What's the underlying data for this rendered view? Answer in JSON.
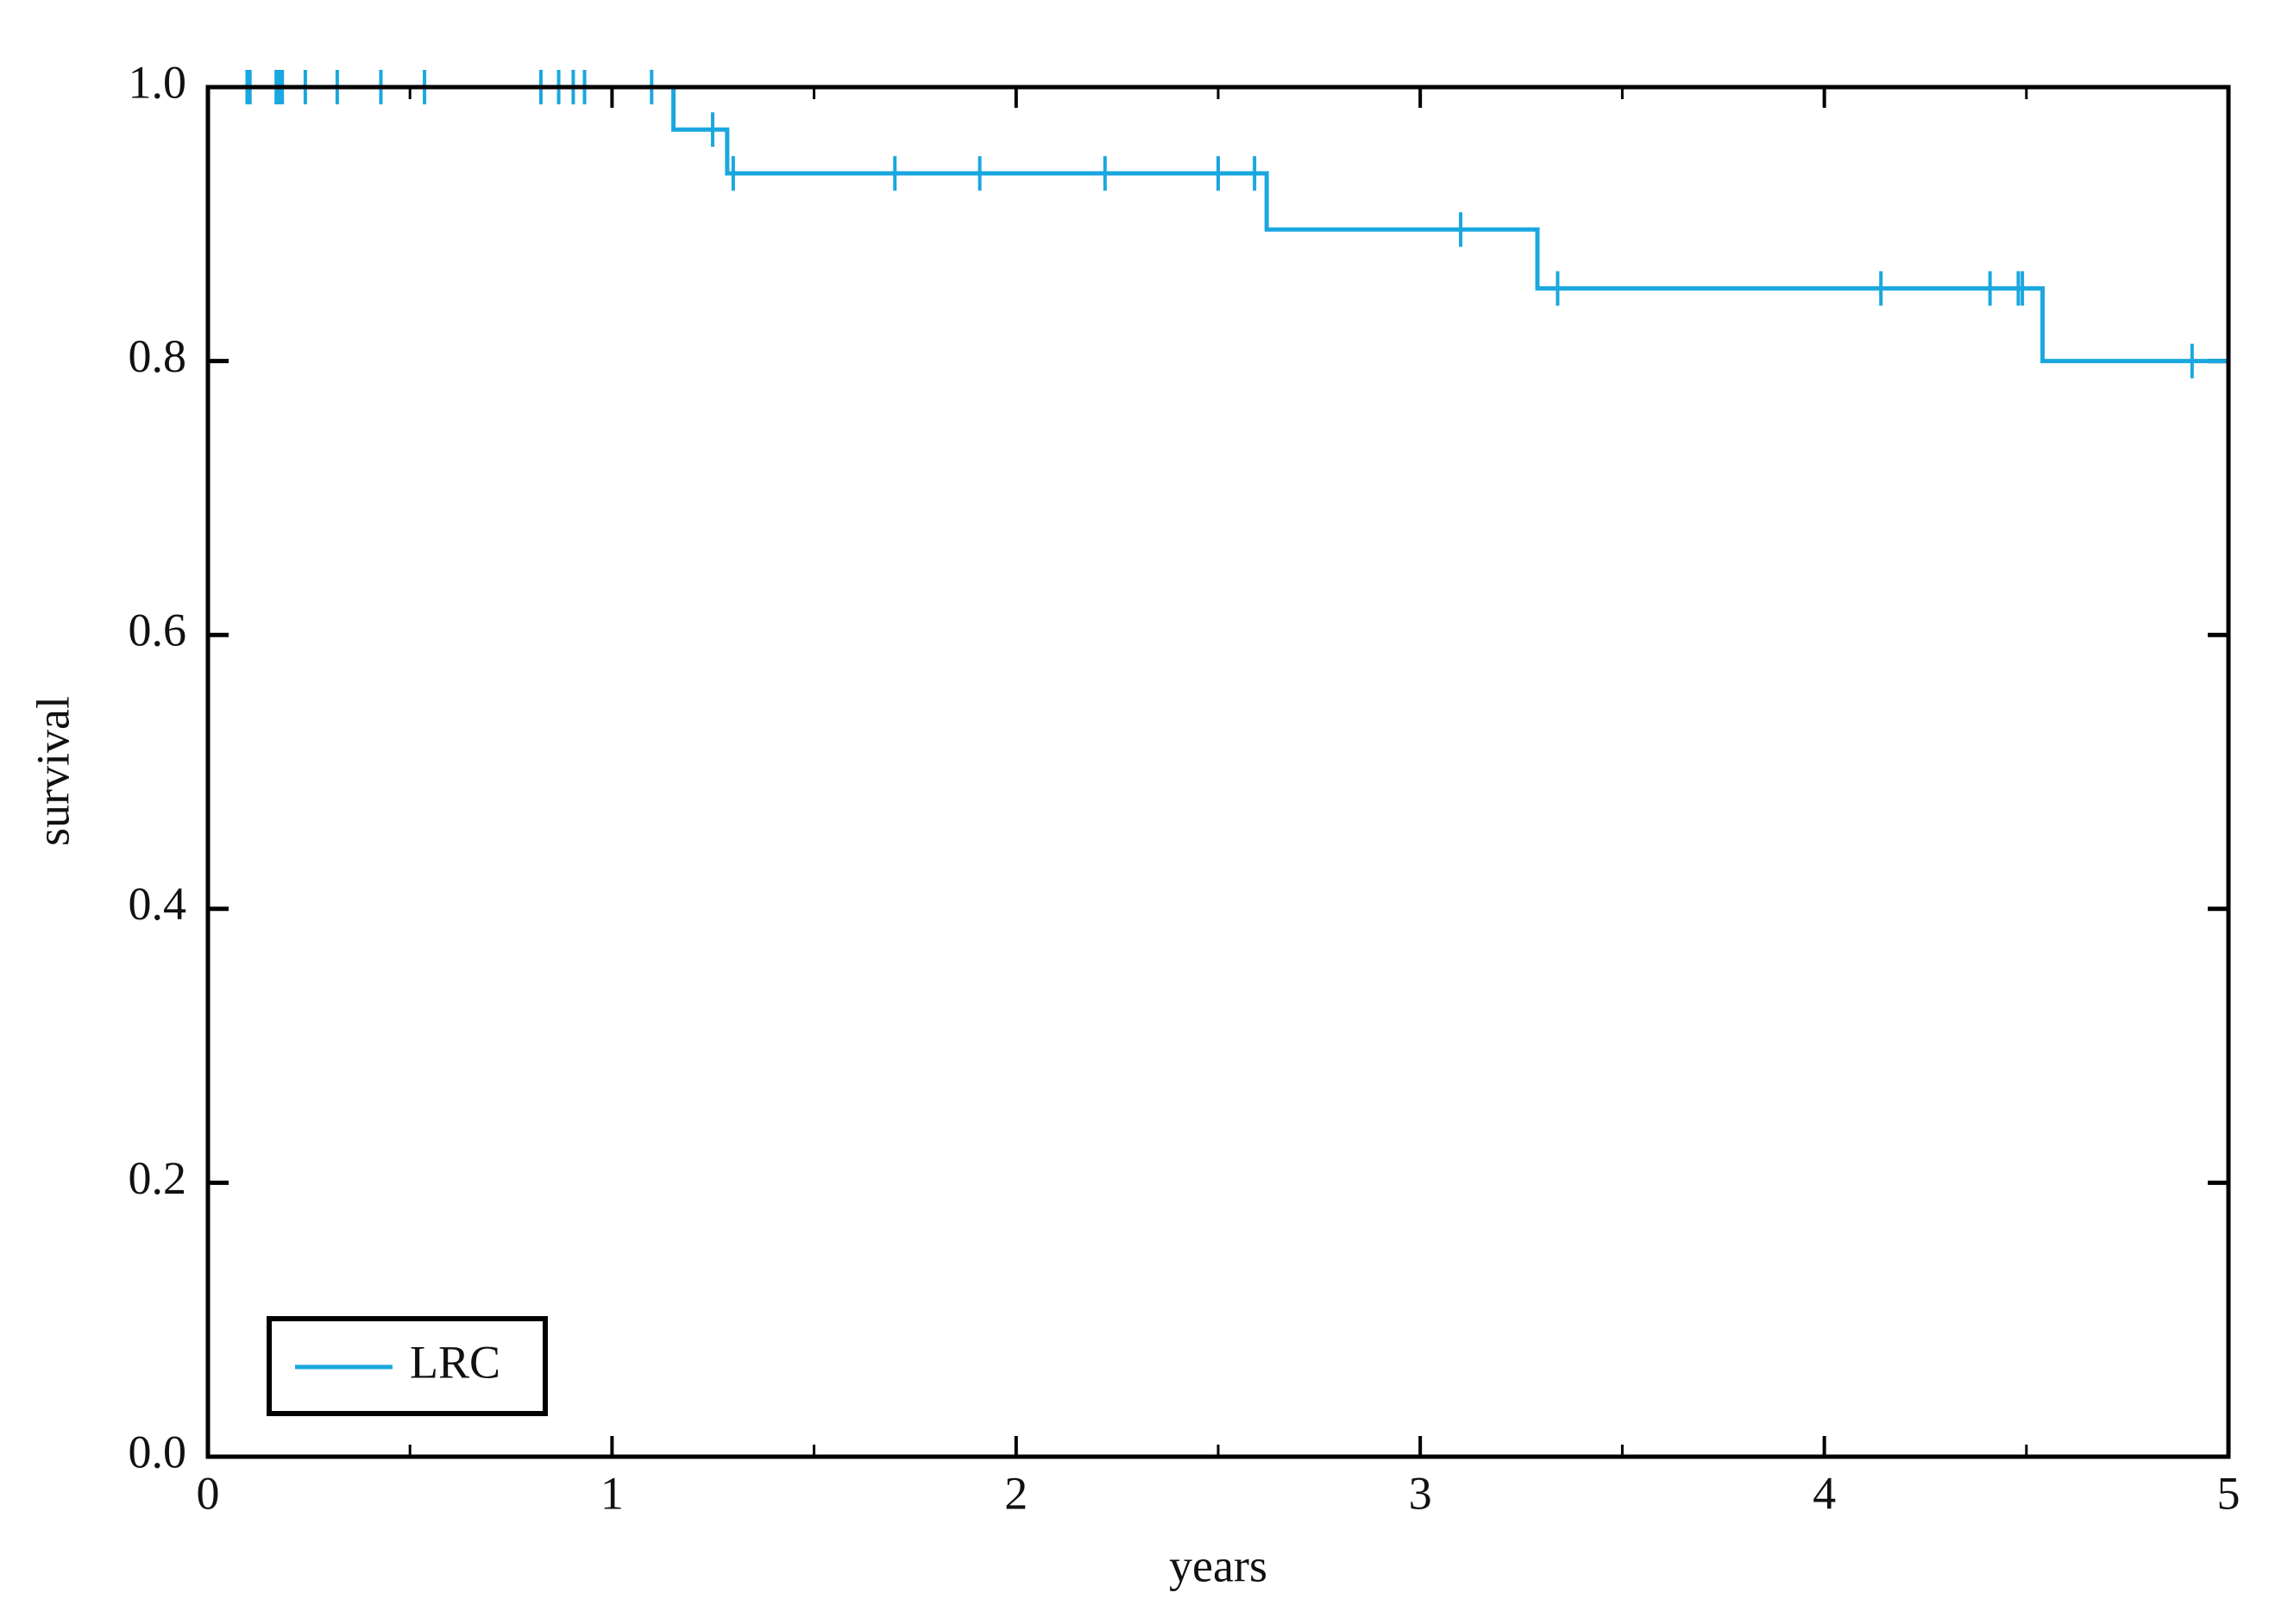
{
  "chart_data": {
    "type": "step",
    "x_label": "years",
    "y_label": "survival",
    "xlim": [
      0,
      5
    ],
    "ylim": [
      0,
      1
    ],
    "xticks": [
      0,
      1,
      2,
      3,
      4,
      5
    ],
    "xminorticks": [
      0.5,
      1.5,
      2.5,
      3.5,
      4.5
    ],
    "yticks": [
      {
        "value": 0,
        "label": "0.0"
      },
      0.2,
      0.4,
      0.6,
      0.8,
      {
        "value": 1,
        "label": "1.0"
      }
    ],
    "legend": "lower left",
    "series": [
      {
        "name": "LRC",
        "color": "#1aa7e0",
        "x": [
          0,
          1.152,
          1.285,
          2.62,
          3.29,
          4.54,
          5
        ],
        "values": [
          1,
          0.969,
          0.937,
          0.896,
          0.853,
          0.8,
          0.8
        ],
        "censor_x": [
          0.097,
          0.104,
          0.169,
          0.176,
          0.184,
          0.241,
          0.32,
          0.428,
          0.536,
          0.824,
          0.868,
          0.904,
          0.932,
          1.098,
          1.249,
          1.3,
          1.7,
          1.91,
          2.22,
          2.5,
          2.59,
          3.1,
          3.34,
          4.14,
          4.41,
          4.48,
          4.49,
          4.91,
          5
        ],
        "censor_values": [
          1,
          1,
          1,
          1,
          1,
          1,
          1,
          1,
          1,
          1,
          1,
          1,
          1,
          1,
          0.969,
          0.937,
          0.937,
          0.937,
          0.937,
          0.937,
          0.937,
          0.896,
          0.853,
          0.853,
          0.853,
          0.853,
          0.853,
          0.8,
          0.8
        ]
      }
    ]
  }
}
